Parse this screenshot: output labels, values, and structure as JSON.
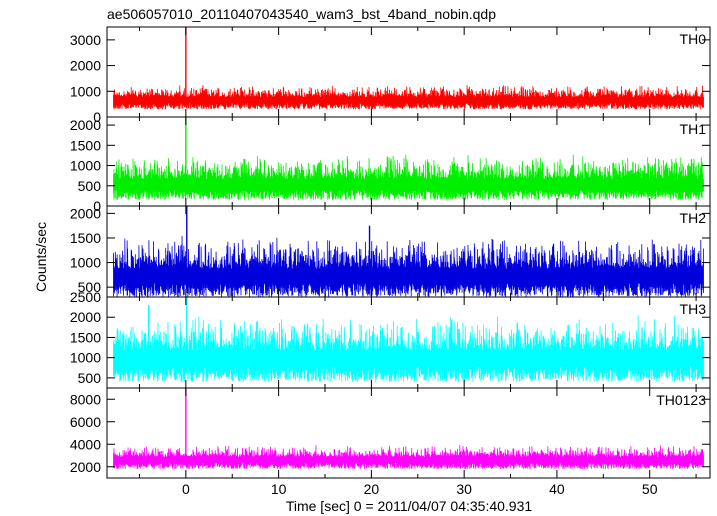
{
  "chart_data": {
    "type": "line",
    "title": "ae506057010_20110407043540_wam3_bst_4band_nobin.qdp",
    "xlabel": "Time [sec] 0 = 2011/04/07 04:35:40.931",
    "ylabel": "Counts/sec",
    "xlim": [
      -8.5,
      56.5
    ],
    "x_ticks": [
      0,
      10,
      20,
      30,
      40,
      50
    ],
    "grid": false,
    "panels": [
      {
        "name": "TH0",
        "color": "#ff0000",
        "ylim": [
          0,
          3500
        ],
        "y_ticks": [
          0,
          1000,
          2000,
          3000
        ],
        "baseline": 650,
        "noise_low": 350,
        "noise_high": 500,
        "spikes": [
          {
            "x": 0.0,
            "value": 3500
          }
        ]
      },
      {
        "name": "TH1",
        "color": "#00ee00",
        "ylim": [
          0,
          2200
        ],
        "y_ticks": [
          0,
          500,
          1000,
          1500,
          2000
        ],
        "baseline": 500,
        "noise_low": 350,
        "noise_high": 650,
        "spikes": [
          {
            "x": 0.0,
            "value": 2200
          }
        ]
      },
      {
        "name": "TH2",
        "color": "#0000dd",
        "ylim": [
          300,
          2150
        ],
        "y_ticks": [
          500,
          1000,
          1500,
          2000
        ],
        "baseline": 700,
        "noise_low": 400,
        "noise_high": 700,
        "spikes": [
          {
            "x": 0.1,
            "value": 2150
          },
          {
            "x": 19.8,
            "value": 1750
          }
        ]
      },
      {
        "name": "TH3",
        "color": "#00ffff",
        "ylim": [
          250,
          2500
        ],
        "y_ticks": [
          500,
          1000,
          1500,
          2000,
          2500
        ],
        "baseline": 950,
        "noise_low": 550,
        "noise_high": 900,
        "spikes": [
          {
            "x": 0.1,
            "value": 2500
          },
          {
            "x": -4.0,
            "value": 2300
          }
        ]
      },
      {
        "name": "TH0123",
        "color": "#ff00ff",
        "ylim": [
          1000,
          9000
        ],
        "y_ticks": [
          2000,
          4000,
          6000,
          8000
        ],
        "baseline": 2600,
        "noise_low": 800,
        "noise_high": 1100,
        "spikes": [
          {
            "x": 0.0,
            "value": 9000
          }
        ]
      }
    ]
  }
}
